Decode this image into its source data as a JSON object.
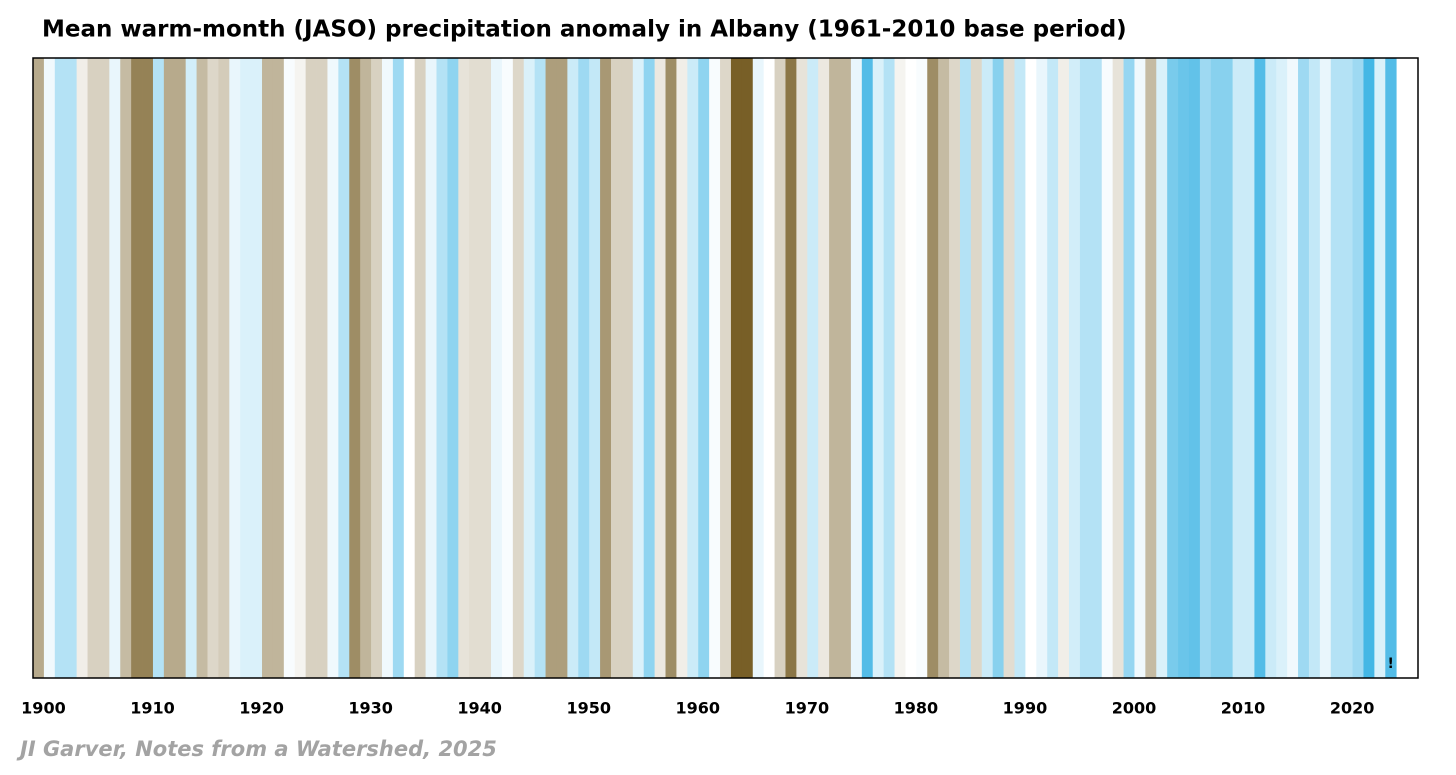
{
  "chart_data": {
    "type": "stripes",
    "title": "Mean warm-month (JASO) precipitation anomaly in Albany  (1961-2010 base period)",
    "credit": "JI Garver, Notes from a Watershed, 2025",
    "annotation": "!",
    "x": [
      1900,
      1901,
      1902,
      1903,
      1904,
      1905,
      1906,
      1907,
      1908,
      1909,
      1910,
      1911,
      1912,
      1913,
      1914,
      1915,
      1916,
      1917,
      1918,
      1919,
      1920,
      1921,
      1922,
      1923,
      1924,
      1925,
      1926,
      1927,
      1928,
      1929,
      1930,
      1931,
      1932,
      1933,
      1934,
      1935,
      1936,
      1937,
      1938,
      1939,
      1940,
      1941,
      1942,
      1943,
      1944,
      1945,
      1946,
      1947,
      1948,
      1949,
      1950,
      1951,
      1952,
      1953,
      1954,
      1955,
      1956,
      1957,
      1958,
      1959,
      1960,
      1961,
      1962,
      1963,
      1964,
      1965,
      1966,
      1967,
      1968,
      1969,
      1970,
      1971,
      1972,
      1973,
      1974,
      1975,
      1976,
      1977,
      1978,
      1979,
      1980,
      1981,
      1982,
      1983,
      1984,
      1985,
      1986,
      1987,
      1988,
      1989,
      1990,
      1991,
      1992,
      1993,
      1994,
      1995,
      1996,
      1997,
      1998,
      1999,
      2000,
      2001,
      2002,
      2003,
      2004,
      2005,
      2006,
      2007,
      2008,
      2009,
      2010,
      2011,
      2012,
      2013,
      2014,
      2015,
      2016,
      2017,
      2018,
      2019,
      2020,
      2021,
      2022,
      2023,
      2024
    ],
    "values": [
      -1.5,
      0.2,
      1.0,
      1.0,
      -0.3,
      -0.8,
      -0.8,
      0.3,
      -1.2,
      -2.2,
      -2.2,
      1.0,
      -1.5,
      -1.5,
      0.6,
      -1.2,
      -0.7,
      -0.9,
      0.3,
      0.5,
      0.5,
      -1.3,
      -1.3,
      0.1,
      -0.2,
      -0.8,
      -0.8,
      0.2,
      1.0,
      -2.0,
      -1.3,
      -0.8,
      0.2,
      1.3,
      0.0,
      -0.8,
      0.3,
      1.0,
      1.5,
      -0.5,
      -0.6,
      -0.6,
      0.3,
      0.1,
      -0.7,
      0.5,
      1.0,
      -1.7,
      -1.7,
      0.7,
      1.3,
      0.8,
      -1.8,
      -0.8,
      -0.8,
      0.5,
      1.5,
      -0.4,
      -2.0,
      -0.3,
      0.7,
      1.5,
      0.1,
      -0.7,
      -2.8,
      -2.8,
      0.3,
      0.0,
      -0.8,
      -2.4,
      -0.5,
      0.7,
      -0.4,
      -1.3,
      -1.3,
      0.3,
      2.3,
      0.5,
      1.0,
      -0.2,
      0.0,
      0.1,
      -2.0,
      -1.2,
      -0.7,
      1.0,
      -0.7,
      0.7,
      1.6,
      -0.6,
      0.8,
      0.0,
      0.3,
      0.8,
      -0.3,
      0.6,
      1.0,
      1.0,
      0.1,
      -0.5,
      1.4,
      0.2,
      -1.2,
      0.5,
      1.8,
      2.0,
      2.1,
      1.3,
      1.6,
      1.6,
      0.7,
      0.7,
      2.3,
      0.7,
      0.5,
      0.2,
      1.3,
      0.8,
      0.3,
      1.0,
      1.0,
      1.3,
      2.5,
      0.5,
      2.3
    ],
    "vlim": [
      -3,
      3
    ],
    "dry_color": "#6e5418",
    "neutral_color": "#ffffff",
    "wet_color": "#1fa8e0",
    "xlim": [
      1900,
      2027
    ],
    "xticks": [
      1900,
      1910,
      1920,
      1930,
      1940,
      1950,
      1960,
      1970,
      1980,
      1990,
      2000,
      2010,
      2020
    ]
  }
}
